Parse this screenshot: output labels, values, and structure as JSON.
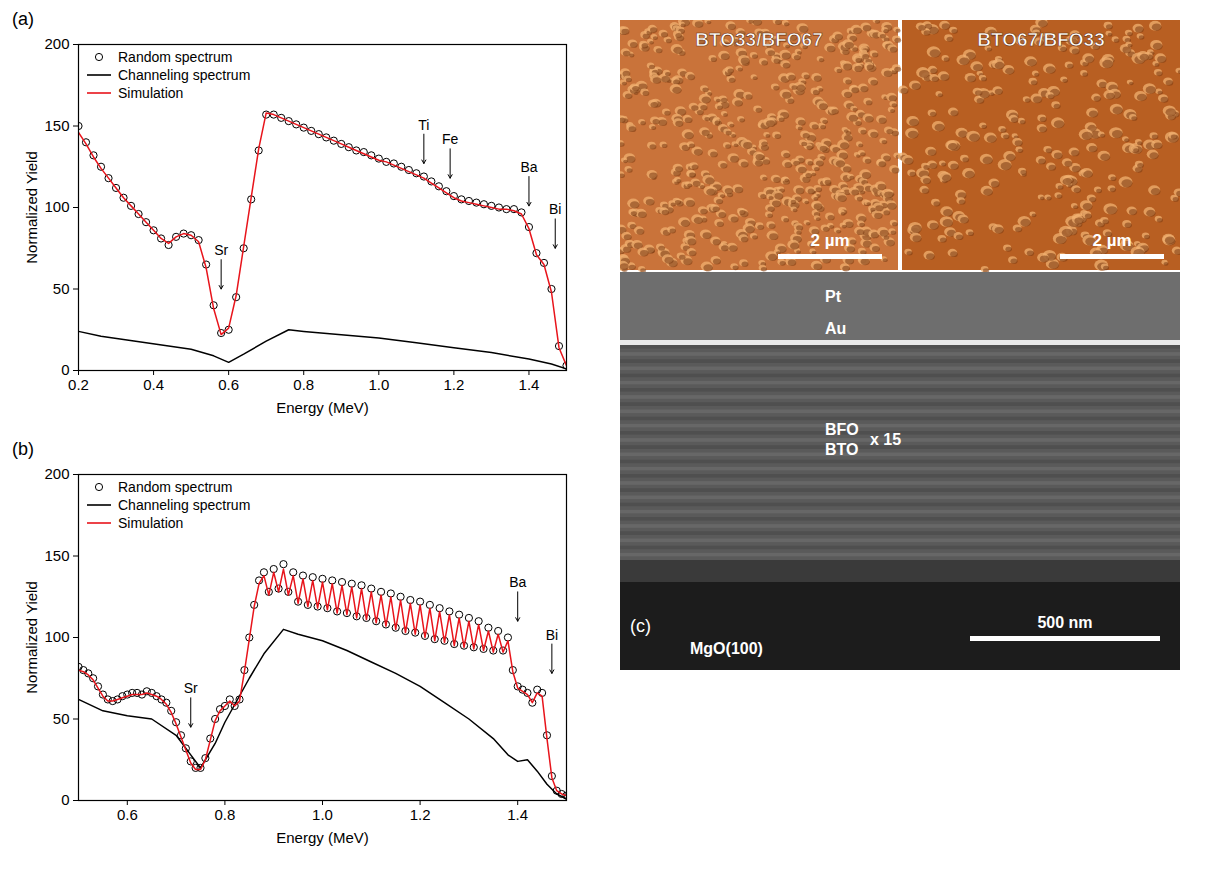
{
  "chart_data": [
    {
      "type": "line",
      "panel": "(a)",
      "xlabel": "Energy (MeV)",
      "ylabel": "Normalized Yield",
      "xlim": [
        0.2,
        1.5
      ],
      "xticks": [
        0.2,
        0.4,
        0.6,
        0.8,
        {
          "value": 1,
          "label": "1.0"
        },
        1.2,
        1.4
      ],
      "ylim": [
        0,
        200
      ],
      "yticks": [
        0,
        50,
        100,
        150,
        200
      ],
      "legend": "top-left",
      "series": [
        {
          "name": "Random spectrum",
          "type": "scatter",
          "marker": "open-circle",
          "color": "#000000",
          "x": [
            0.2,
            0.22,
            0.24,
            0.26,
            0.28,
            0.3,
            0.32,
            0.34,
            0.36,
            0.38,
            0.4,
            0.42,
            0.44,
            0.46,
            0.48,
            0.5,
            0.52,
            0.54,
            0.56,
            0.58,
            0.6,
            0.62,
            0.64,
            0.66,
            0.68,
            0.7,
            0.72,
            0.74,
            0.76,
            0.78,
            0.8,
            0.82,
            0.84,
            0.86,
            0.88,
            0.9,
            0.92,
            0.94,
            0.96,
            0.98,
            1.0,
            1.02,
            1.04,
            1.06,
            1.08,
            1.1,
            1.12,
            1.14,
            1.16,
            1.18,
            1.2,
            1.22,
            1.24,
            1.26,
            1.28,
            1.3,
            1.32,
            1.34,
            1.36,
            1.38,
            1.4,
            1.42,
            1.44,
            1.46,
            1.48,
            1.5
          ],
          "values": [
            150,
            140,
            132,
            125,
            118,
            112,
            106,
            101,
            96,
            91,
            86,
            81,
            77,
            82,
            84,
            83,
            80,
            65,
            40,
            23,
            25,
            45,
            75,
            105,
            135,
            157,
            157,
            155,
            153,
            151,
            149,
            147,
            145,
            143,
            141,
            139,
            137,
            135,
            134,
            132,
            130,
            128,
            127,
            125,
            123,
            121,
            119,
            116,
            113,
            110,
            107,
            105,
            104,
            103,
            102,
            101,
            100,
            99,
            99,
            97,
            88,
            72,
            66,
            50,
            15,
            3
          ]
        },
        {
          "name": "Channeling spectrum",
          "type": "line",
          "line_style": "solid",
          "color": "#000000",
          "x": [
            0.2,
            0.26,
            0.32,
            0.38,
            0.44,
            0.5,
            0.56,
            0.6,
            0.64,
            0.7,
            0.76,
            0.8,
            0.9,
            1.0,
            1.1,
            1.2,
            1.3,
            1.4,
            1.46,
            1.5
          ],
          "values": [
            24,
            21,
            19,
            17,
            15,
            13,
            9,
            5,
            10,
            18,
            25,
            24,
            22,
            20,
            17,
            14,
            11,
            7,
            4,
            1
          ]
        },
        {
          "name": "Simulation",
          "type": "line",
          "line_style": "solid",
          "color": "#e8141b",
          "x": [
            0.2,
            0.22,
            0.24,
            0.26,
            0.28,
            0.3,
            0.32,
            0.34,
            0.36,
            0.38,
            0.4,
            0.42,
            0.44,
            0.46,
            0.48,
            0.5,
            0.52,
            0.54,
            0.56,
            0.58,
            0.6,
            0.62,
            0.64,
            0.66,
            0.68,
            0.7,
            0.72,
            0.74,
            0.76,
            0.78,
            0.8,
            0.82,
            0.84,
            0.86,
            0.88,
            0.9,
            0.92,
            0.94,
            0.96,
            0.98,
            1.0,
            1.02,
            1.04,
            1.06,
            1.08,
            1.1,
            1.12,
            1.14,
            1.16,
            1.18,
            1.2,
            1.22,
            1.24,
            1.26,
            1.28,
            1.3,
            1.32,
            1.34,
            1.36,
            1.38,
            1.4,
            1.42,
            1.44,
            1.46,
            1.48,
            1.5
          ],
          "values": [
            146,
            139,
            131,
            124,
            118,
            112,
            106,
            101,
            96,
            91,
            86,
            81,
            78,
            82,
            84,
            83,
            79,
            63,
            38,
            22,
            26,
            46,
            76,
            106,
            136,
            158,
            157,
            155,
            153,
            151,
            149,
            147,
            145,
            143,
            141,
            139,
            137,
            135,
            133,
            131,
            129,
            128,
            126,
            124,
            122,
            120,
            118,
            115,
            112,
            109,
            106,
            104,
            103,
            102,
            101,
            100,
            99,
            99,
            98,
            96,
            87,
            71,
            65,
            48,
            14,
            3
          ]
        }
      ],
      "annotations": [
        {
          "text": "Sr",
          "x": 0.58,
          "y": 50
        },
        {
          "text": "Ti",
          "x": 1.12,
          "y": 127
        },
        {
          "text": "Fe",
          "x": 1.19,
          "y": 118
        },
        {
          "text": "Ba",
          "x": 1.4,
          "y": 101
        },
        {
          "text": "Bi",
          "x": 1.47,
          "y": 75
        }
      ]
    },
    {
      "type": "line",
      "panel": "(b)",
      "xlabel": "Energy (MeV)",
      "ylabel": "Normalized Yield",
      "xlim": [
        0.5,
        1.5
      ],
      "xticks": [
        0.6,
        0.8,
        {
          "value": 1,
          "label": "1.0"
        },
        1.2,
        1.4
      ],
      "ylim": [
        0,
        200
      ],
      "yticks": [
        0,
        50,
        100,
        150,
        200
      ],
      "legend": "top-left",
      "series": [
        {
          "name": "Random spectrum",
          "type": "scatter",
          "marker": "open-circle",
          "color": "#000000",
          "x": [
            0.5,
            0.51,
            0.52,
            0.53,
            0.54,
            0.55,
            0.56,
            0.57,
            0.58,
            0.59,
            0.6,
            0.61,
            0.62,
            0.63,
            0.64,
            0.65,
            0.66,
            0.67,
            0.68,
            0.69,
            0.7,
            0.71,
            0.72,
            0.73,
            0.74,
            0.75,
            0.76,
            0.77,
            0.78,
            0.79,
            0.8,
            0.81,
            0.82,
            0.83,
            0.84,
            0.85,
            0.86,
            0.87,
            0.88,
            0.89,
            0.9,
            0.91,
            0.92,
            0.93,
            0.94,
            0.95,
            0.96,
            0.97,
            0.98,
            0.99,
            1.0,
            1.01,
            1.02,
            1.03,
            1.04,
            1.05,
            1.06,
            1.07,
            1.08,
            1.09,
            1.1,
            1.11,
            1.12,
            1.13,
            1.14,
            1.15,
            1.16,
            1.17,
            1.18,
            1.19,
            1.2,
            1.21,
            1.22,
            1.23,
            1.24,
            1.25,
            1.26,
            1.27,
            1.28,
            1.29,
            1.3,
            1.31,
            1.32,
            1.33,
            1.34,
            1.35,
            1.36,
            1.37,
            1.38,
            1.39,
            1.4,
            1.41,
            1.42,
            1.43,
            1.44,
            1.45,
            1.46,
            1.47,
            1.48,
            1.49,
            1.5
          ],
          "values": [
            82,
            80,
            78,
            75,
            70,
            65,
            62,
            61,
            62,
            64,
            65,
            66,
            66,
            65,
            67,
            66,
            64,
            62,
            60,
            55,
            48,
            40,
            32,
            24,
            20,
            20,
            26,
            38,
            50,
            56,
            58,
            62,
            58,
            62,
            80,
            100,
            120,
            135,
            140,
            128,
            142,
            130,
            145,
            128,
            140,
            122,
            138,
            120,
            137,
            119,
            136,
            118,
            135,
            116,
            134,
            115,
            133,
            113,
            132,
            112,
            130,
            110,
            128,
            108,
            127,
            106,
            125,
            104,
            123,
            103,
            122,
            101,
            120,
            99,
            118,
            98,
            116,
            96,
            114,
            95,
            112,
            94,
            110,
            93,
            106,
            92,
            104,
            92,
            100,
            80,
            70,
            68,
            66,
            60,
            68,
            66,
            40,
            15,
            6,
            4,
            3
          ]
        },
        {
          "name": "Channeling spectrum",
          "type": "line",
          "line_style": "solid",
          "color": "#000000",
          "x": [
            0.5,
            0.55,
            0.6,
            0.65,
            0.7,
            0.73,
            0.75,
            0.78,
            0.8,
            0.85,
            0.88,
            0.92,
            0.95,
            1.0,
            1.05,
            1.1,
            1.15,
            1.2,
            1.25,
            1.3,
            1.35,
            1.38,
            1.4,
            1.42,
            1.44,
            1.46,
            1.48,
            1.5
          ],
          "values": [
            62,
            55,
            52,
            50,
            40,
            28,
            20,
            35,
            48,
            75,
            90,
            105,
            102,
            98,
            92,
            85,
            78,
            70,
            60,
            50,
            38,
            28,
            24,
            25,
            18,
            10,
            4,
            1
          ]
        },
        {
          "name": "Simulation",
          "type": "line",
          "line_style": "solid",
          "color": "#e8141b",
          "x": [
            0.5,
            0.51,
            0.52,
            0.53,
            0.54,
            0.55,
            0.56,
            0.57,
            0.58,
            0.59,
            0.6,
            0.61,
            0.62,
            0.63,
            0.64,
            0.65,
            0.66,
            0.67,
            0.68,
            0.69,
            0.7,
            0.71,
            0.72,
            0.73,
            0.74,
            0.75,
            0.76,
            0.77,
            0.78,
            0.79,
            0.8,
            0.81,
            0.82,
            0.83,
            0.84,
            0.85,
            0.86,
            0.87,
            0.88,
            0.89,
            0.9,
            0.91,
            0.92,
            0.93,
            0.94,
            0.95,
            0.96,
            0.97,
            0.98,
            0.99,
            1.0,
            1.01,
            1.02,
            1.03,
            1.04,
            1.05,
            1.06,
            1.07,
            1.08,
            1.09,
            1.1,
            1.11,
            1.12,
            1.13,
            1.14,
            1.15,
            1.16,
            1.17,
            1.18,
            1.19,
            1.2,
            1.21,
            1.22,
            1.23,
            1.24,
            1.25,
            1.26,
            1.27,
            1.28,
            1.29,
            1.3,
            1.31,
            1.32,
            1.33,
            1.34,
            1.35,
            1.36,
            1.37,
            1.38,
            1.39,
            1.4,
            1.41,
            1.42,
            1.43,
            1.44,
            1.45,
            1.46,
            1.47,
            1.48,
            1.49,
            1.5
          ],
          "values": [
            80,
            79,
            77,
            74,
            69,
            64,
            61,
            61,
            62,
            63,
            64,
            65,
            65,
            65,
            66,
            65,
            64,
            62,
            59,
            54,
            47,
            39,
            31,
            23,
            19,
            19,
            25,
            37,
            49,
            55,
            58,
            61,
            58,
            61,
            79,
            99,
            119,
            133,
            138,
            126,
            140,
            128,
            142,
            126,
            138,
            121,
            136,
            119,
            135,
            118,
            134,
            117,
            133,
            115,
            132,
            114,
            131,
            112,
            130,
            111,
            128,
            109,
            126,
            107,
            125,
            105,
            123,
            103,
            121,
            102,
            120,
            100,
            118,
            98,
            116,
            97,
            114,
            95,
            112,
            94,
            110,
            93,
            108,
            92,
            104,
            91,
            102,
            91,
            98,
            79,
            69,
            67,
            65,
            60,
            66,
            64,
            38,
            14,
            6,
            4,
            3
          ]
        }
      ],
      "annotations": [
        {
          "text": "Sr",
          "x": 0.73,
          "y": 45
        },
        {
          "text": "Ba",
          "x": 1.4,
          "y": 110
        },
        {
          "text": "Bi",
          "x": 1.47,
          "y": 78
        }
      ]
    }
  ],
  "panel_c": {
    "label": "(c)",
    "afm": [
      {
        "title": "BTO33/BFO67",
        "scale_bar": "2 µm"
      },
      {
        "title": "BTO67/BFO33",
        "scale_bar": "2 µm"
      }
    ],
    "sem": {
      "layers": [
        "Pt",
        "Au"
      ],
      "multilayer": {
        "labels": [
          "BFO",
          "BTO"
        ],
        "repeat": "x 15"
      },
      "substrate": "MgO(100)",
      "scale_bar": "500 nm"
    }
  }
}
